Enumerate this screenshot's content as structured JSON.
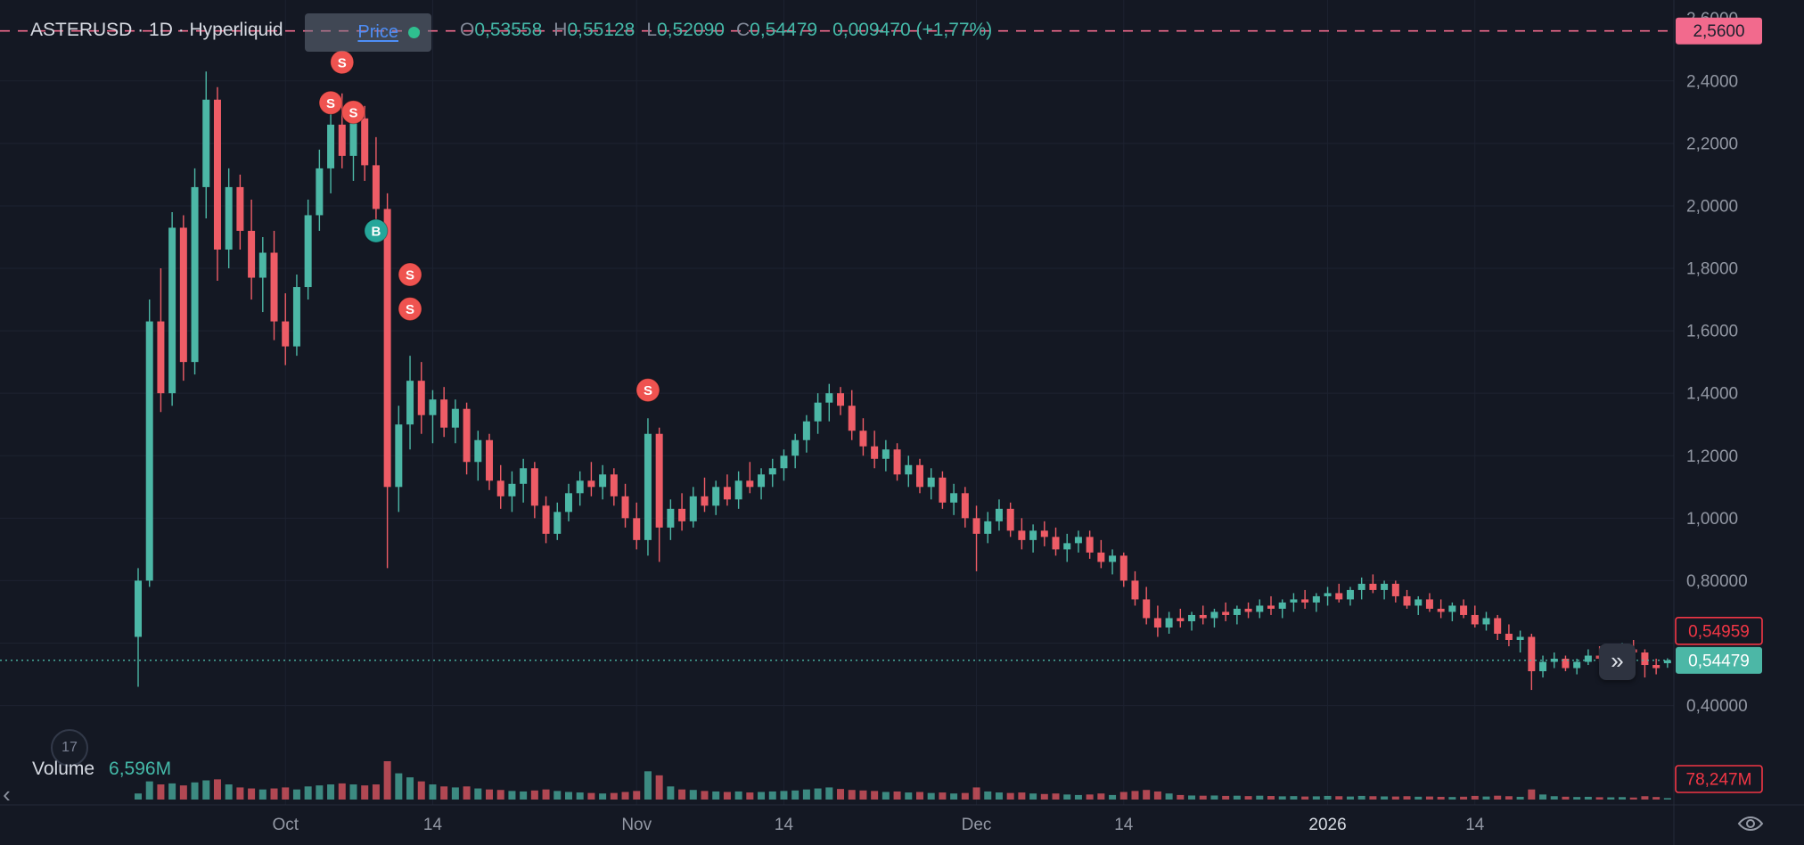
{
  "header": {
    "symbol_title": "ASTERUSD · 1D · Hyperliquid",
    "ohlc": {
      "open_label": "O",
      "open": "0,53558",
      "high_label": "H",
      "high": "0,55128",
      "low_label": "L",
      "low": "0,52090",
      "close_label": "C",
      "close": "0,54479",
      "change": "0,009470 (+1,77%)"
    },
    "tooltip": {
      "label": "Price"
    }
  },
  "volume_legend": {
    "title": "Volume",
    "value": "6,596M"
  },
  "price_axis_tags": {
    "alert": "2,5600",
    "secondary": "0,54959",
    "last": "0,54479",
    "volume": "78,247M"
  },
  "icons": {
    "go_to_realtime": "»",
    "collapse_left": "‹",
    "logo_badge": "17"
  },
  "colors": {
    "background": "#141823",
    "up": "#4cb7a6",
    "down": "#ee5c66",
    "pink": "#f26a8d",
    "red": "#f23645",
    "grid": "#1d2230",
    "axis_border": "#252a38",
    "axis_text": "#9297a3",
    "title_text": "#d6dae2",
    "marker_sell": "#ef5350",
    "marker_buy": "#26a69a"
  },
  "chart_data": {
    "type": "candlestick",
    "symbol": "ASTERUSD",
    "interval": "1D",
    "exchange": "Hyperliquid",
    "last_open": 0.53558,
    "last_high": 0.55128,
    "last_low": 0.5209,
    "last_close": 0.54479,
    "change": 0.00947,
    "change_pct": 1.77,
    "y_axis_range": [
      0.38,
      2.62
    ],
    "y_ticks": [
      {
        "value": 2.6,
        "label": "2,6000"
      },
      {
        "value": 2.4,
        "label": "2,4000"
      },
      {
        "value": 2.2,
        "label": "2,2000"
      },
      {
        "value": 2.0,
        "label": "2,0000"
      },
      {
        "value": 1.8,
        "label": "1,8000"
      },
      {
        "value": 1.6,
        "label": "1,6000"
      },
      {
        "value": 1.4,
        "label": "1,4000"
      },
      {
        "value": 1.2,
        "label": "1,2000"
      },
      {
        "value": 1.0,
        "label": "1,0000"
      },
      {
        "value": 0.8,
        "label": "0,80000"
      },
      {
        "value": 0.4,
        "label": "0,40000"
      }
    ],
    "grid_values": [
      2.4,
      2.2,
      2.0,
      1.8,
      1.6,
      1.4,
      1.2,
      1.0,
      0.8,
      0.6,
      0.4
    ],
    "x_ticks": [
      {
        "index": 13,
        "label": "Oct"
      },
      {
        "index": 26,
        "label": "14"
      },
      {
        "index": 44,
        "label": "Nov"
      },
      {
        "index": 57,
        "label": "14"
      },
      {
        "index": 74,
        "label": "Dec"
      },
      {
        "index": 87,
        "label": "14"
      },
      {
        "index": 105,
        "label": "2026",
        "emphasis": true
      },
      {
        "index": 118,
        "label": "14"
      }
    ],
    "price_lines": [
      {
        "value": 2.56,
        "label": "2,5600",
        "style": "dashed",
        "role": "alert"
      },
      {
        "value": 0.54479,
        "label": "0,54479",
        "style": "dotted",
        "role": "last"
      }
    ],
    "markers": [
      {
        "index": 17,
        "price": 2.33,
        "label": "S",
        "side": "sell"
      },
      {
        "index": 18,
        "price": 2.46,
        "label": "S",
        "side": "sell"
      },
      {
        "index": 19,
        "price": 2.3,
        "label": "S",
        "side": "sell"
      },
      {
        "index": 21,
        "price": 1.92,
        "label": "B",
        "side": "buy"
      },
      {
        "index": 24,
        "price": 1.78,
        "label": "S",
        "side": "sell"
      },
      {
        "index": 24,
        "price": 1.67,
        "label": "S",
        "side": "sell"
      },
      {
        "index": 45,
        "price": 1.41,
        "label": "S",
        "side": "sell"
      }
    ],
    "volume_unit": "M",
    "candles": [
      [
        0.62,
        0.84,
        0.46,
        0.8,
        60
      ],
      [
        0.8,
        1.7,
        0.78,
        1.63,
        180
      ],
      [
        1.63,
        1.8,
        1.34,
        1.4,
        150
      ],
      [
        1.4,
        1.98,
        1.36,
        1.93,
        160
      ],
      [
        1.93,
        1.97,
        1.44,
        1.5,
        140
      ],
      [
        1.5,
        2.12,
        1.46,
        2.06,
        170
      ],
      [
        2.06,
        2.43,
        1.96,
        2.34,
        190
      ],
      [
        2.34,
        2.38,
        1.76,
        1.86,
        200
      ],
      [
        1.86,
        2.12,
        1.8,
        2.06,
        150
      ],
      [
        2.06,
        2.1,
        1.86,
        1.92,
        120
      ],
      [
        1.92,
        2.02,
        1.7,
        1.77,
        110
      ],
      [
        1.77,
        1.9,
        1.66,
        1.85,
        100
      ],
      [
        1.85,
        1.92,
        1.57,
        1.63,
        110
      ],
      [
        1.63,
        1.72,
        1.49,
        1.55,
        120
      ],
      [
        1.55,
        1.78,
        1.52,
        1.74,
        100
      ],
      [
        1.74,
        2.02,
        1.7,
        1.97,
        130
      ],
      [
        1.97,
        2.18,
        1.92,
        2.12,
        140
      ],
      [
        2.12,
        2.31,
        2.04,
        2.26,
        150
      ],
      [
        2.26,
        2.36,
        2.12,
        2.16,
        160
      ],
      [
        2.16,
        2.33,
        2.08,
        2.28,
        150
      ],
      [
        2.28,
        2.32,
        2.08,
        2.13,
        140
      ],
      [
        2.13,
        2.22,
        1.94,
        1.99,
        150
      ],
      [
        1.99,
        2.04,
        0.84,
        1.1,
        380
      ],
      [
        1.1,
        1.36,
        1.02,
        1.3,
        260
      ],
      [
        1.3,
        1.52,
        1.22,
        1.44,
        220
      ],
      [
        1.44,
        1.5,
        1.27,
        1.33,
        180
      ],
      [
        1.33,
        1.41,
        1.24,
        1.38,
        150
      ],
      [
        1.38,
        1.42,
        1.26,
        1.29,
        130
      ],
      [
        1.29,
        1.38,
        1.24,
        1.35,
        120
      ],
      [
        1.35,
        1.37,
        1.14,
        1.18,
        130
      ],
      [
        1.18,
        1.28,
        1.12,
        1.25,
        110
      ],
      [
        1.25,
        1.27,
        1.09,
        1.12,
        100
      ],
      [
        1.12,
        1.17,
        1.03,
        1.07,
        95
      ],
      [
        1.07,
        1.15,
        1.02,
        1.11,
        85
      ],
      [
        1.11,
        1.19,
        1.05,
        1.16,
        80
      ],
      [
        1.16,
        1.18,
        1.0,
        1.04,
        90
      ],
      [
        1.04,
        1.07,
        0.92,
        0.95,
        100
      ],
      [
        0.95,
        1.05,
        0.93,
        1.02,
        85
      ],
      [
        1.02,
        1.11,
        0.99,
        1.08,
        75
      ],
      [
        1.08,
        1.15,
        1.04,
        1.12,
        70
      ],
      [
        1.12,
        1.18,
        1.07,
        1.1,
        65
      ],
      [
        1.1,
        1.17,
        1.06,
        1.14,
        60
      ],
      [
        1.14,
        1.16,
        1.04,
        1.07,
        65
      ],
      [
        1.07,
        1.11,
        0.97,
        1.0,
        75
      ],
      [
        1.0,
        1.05,
        0.9,
        0.93,
        85
      ],
      [
        0.93,
        1.32,
        0.88,
        1.27,
        280
      ],
      [
        1.27,
        1.29,
        0.86,
        0.97,
        240
      ],
      [
        0.97,
        1.06,
        0.93,
        1.03,
        130
      ],
      [
        1.03,
        1.08,
        0.96,
        0.99,
        100
      ],
      [
        0.99,
        1.1,
        0.97,
        1.07,
        95
      ],
      [
        1.07,
        1.13,
        1.02,
        1.04,
        85
      ],
      [
        1.04,
        1.12,
        1.01,
        1.1,
        80
      ],
      [
        1.1,
        1.14,
        1.04,
        1.06,
        75
      ],
      [
        1.06,
        1.15,
        1.03,
        1.12,
        80
      ],
      [
        1.12,
        1.18,
        1.08,
        1.1,
        70
      ],
      [
        1.1,
        1.16,
        1.06,
        1.14,
        75
      ],
      [
        1.14,
        1.19,
        1.1,
        1.16,
        80
      ],
      [
        1.16,
        1.22,
        1.12,
        1.2,
        85
      ],
      [
        1.2,
        1.27,
        1.16,
        1.25,
        90
      ],
      [
        1.25,
        1.33,
        1.21,
        1.31,
        100
      ],
      [
        1.31,
        1.4,
        1.27,
        1.37,
        110
      ],
      [
        1.37,
        1.43,
        1.31,
        1.4,
        120
      ],
      [
        1.4,
        1.42,
        1.33,
        1.36,
        105
      ],
      [
        1.36,
        1.41,
        1.25,
        1.28,
        95
      ],
      [
        1.28,
        1.32,
        1.2,
        1.23,
        90
      ],
      [
        1.23,
        1.28,
        1.16,
        1.19,
        85
      ],
      [
        1.19,
        1.25,
        1.15,
        1.22,
        75
      ],
      [
        1.22,
        1.24,
        1.12,
        1.14,
        80
      ],
      [
        1.14,
        1.2,
        1.1,
        1.17,
        70
      ],
      [
        1.17,
        1.19,
        1.08,
        1.1,
        75
      ],
      [
        1.1,
        1.16,
        1.06,
        1.13,
        65
      ],
      [
        1.13,
        1.15,
        1.03,
        1.05,
        70
      ],
      [
        1.05,
        1.11,
        1.01,
        1.08,
        60
      ],
      [
        1.08,
        1.1,
        0.97,
        1.0,
        65
      ],
      [
        1.0,
        1.04,
        0.83,
        0.95,
        120
      ],
      [
        0.95,
        1.02,
        0.92,
        0.99,
        80
      ],
      [
        0.99,
        1.06,
        0.96,
        1.03,
        70
      ],
      [
        1.03,
        1.05,
        0.94,
        0.96,
        65
      ],
      [
        0.96,
        1.0,
        0.9,
        0.93,
        70
      ],
      [
        0.93,
        0.98,
        0.89,
        0.96,
        60
      ],
      [
        0.96,
        0.99,
        0.91,
        0.94,
        55
      ],
      [
        0.94,
        0.97,
        0.88,
        0.9,
        60
      ],
      [
        0.9,
        0.95,
        0.86,
        0.92,
        50
      ],
      [
        0.92,
        0.96,
        0.89,
        0.94,
        45
      ],
      [
        0.94,
        0.96,
        0.87,
        0.89,
        50
      ],
      [
        0.89,
        0.93,
        0.84,
        0.86,
        60
      ],
      [
        0.86,
        0.9,
        0.82,
        0.88,
        45
      ],
      [
        0.88,
        0.89,
        0.78,
        0.8,
        75
      ],
      [
        0.8,
        0.83,
        0.72,
        0.74,
        85
      ],
      [
        0.74,
        0.78,
        0.66,
        0.68,
        95
      ],
      [
        0.68,
        0.72,
        0.62,
        0.65,
        80
      ],
      [
        0.65,
        0.7,
        0.63,
        0.68,
        60
      ],
      [
        0.68,
        0.71,
        0.65,
        0.67,
        45
      ],
      [
        0.67,
        0.7,
        0.64,
        0.69,
        40
      ],
      [
        0.69,
        0.72,
        0.66,
        0.68,
        38
      ],
      [
        0.68,
        0.71,
        0.65,
        0.7,
        40
      ],
      [
        0.7,
        0.73,
        0.67,
        0.69,
        36
      ],
      [
        0.69,
        0.72,
        0.66,
        0.71,
        38
      ],
      [
        0.71,
        0.73,
        0.68,
        0.7,
        34
      ],
      [
        0.7,
        0.74,
        0.68,
        0.72,
        38
      ],
      [
        0.72,
        0.75,
        0.69,
        0.71,
        35
      ],
      [
        0.71,
        0.74,
        0.68,
        0.73,
        32
      ],
      [
        0.73,
        0.76,
        0.7,
        0.74,
        34
      ],
      [
        0.74,
        0.77,
        0.71,
        0.73,
        30
      ],
      [
        0.73,
        0.76,
        0.7,
        0.75,
        32
      ],
      [
        0.75,
        0.78,
        0.72,
        0.76,
        36
      ],
      [
        0.76,
        0.79,
        0.73,
        0.74,
        33
      ],
      [
        0.74,
        0.78,
        0.72,
        0.77,
        30
      ],
      [
        0.77,
        0.81,
        0.74,
        0.79,
        36
      ],
      [
        0.79,
        0.82,
        0.76,
        0.77,
        33
      ],
      [
        0.77,
        0.8,
        0.74,
        0.79,
        31
      ],
      [
        0.79,
        0.8,
        0.73,
        0.75,
        30
      ],
      [
        0.75,
        0.77,
        0.71,
        0.72,
        33
      ],
      [
        0.72,
        0.75,
        0.69,
        0.74,
        28
      ],
      [
        0.74,
        0.76,
        0.7,
        0.71,
        30
      ],
      [
        0.71,
        0.74,
        0.68,
        0.7,
        27
      ],
      [
        0.7,
        0.73,
        0.67,
        0.72,
        25
      ],
      [
        0.72,
        0.74,
        0.68,
        0.69,
        28
      ],
      [
        0.69,
        0.72,
        0.65,
        0.66,
        36
      ],
      [
        0.66,
        0.7,
        0.64,
        0.68,
        30
      ],
      [
        0.68,
        0.69,
        0.61,
        0.63,
        38
      ],
      [
        0.63,
        0.66,
        0.59,
        0.61,
        33
      ],
      [
        0.61,
        0.64,
        0.57,
        0.62,
        27
      ],
      [
        0.62,
        0.63,
        0.45,
        0.51,
        100
      ],
      [
        0.51,
        0.56,
        0.49,
        0.54,
        50
      ],
      [
        0.54,
        0.57,
        0.52,
        0.55,
        33
      ],
      [
        0.55,
        0.56,
        0.51,
        0.52,
        28
      ],
      [
        0.52,
        0.55,
        0.5,
        0.54,
        25
      ],
      [
        0.54,
        0.58,
        0.53,
        0.56,
        27
      ],
      [
        0.56,
        0.59,
        0.54,
        0.55,
        23
      ],
      [
        0.55,
        0.58,
        0.53,
        0.57,
        22
      ],
      [
        0.57,
        0.6,
        0.55,
        0.58,
        24
      ],
      [
        0.58,
        0.61,
        0.56,
        0.57,
        20
      ],
      [
        0.57,
        0.58,
        0.49,
        0.53,
        33
      ],
      [
        0.53,
        0.55,
        0.5,
        0.52,
        25
      ],
      [
        0.53558,
        0.55128,
        0.5209,
        0.54479,
        6.6
      ]
    ]
  }
}
